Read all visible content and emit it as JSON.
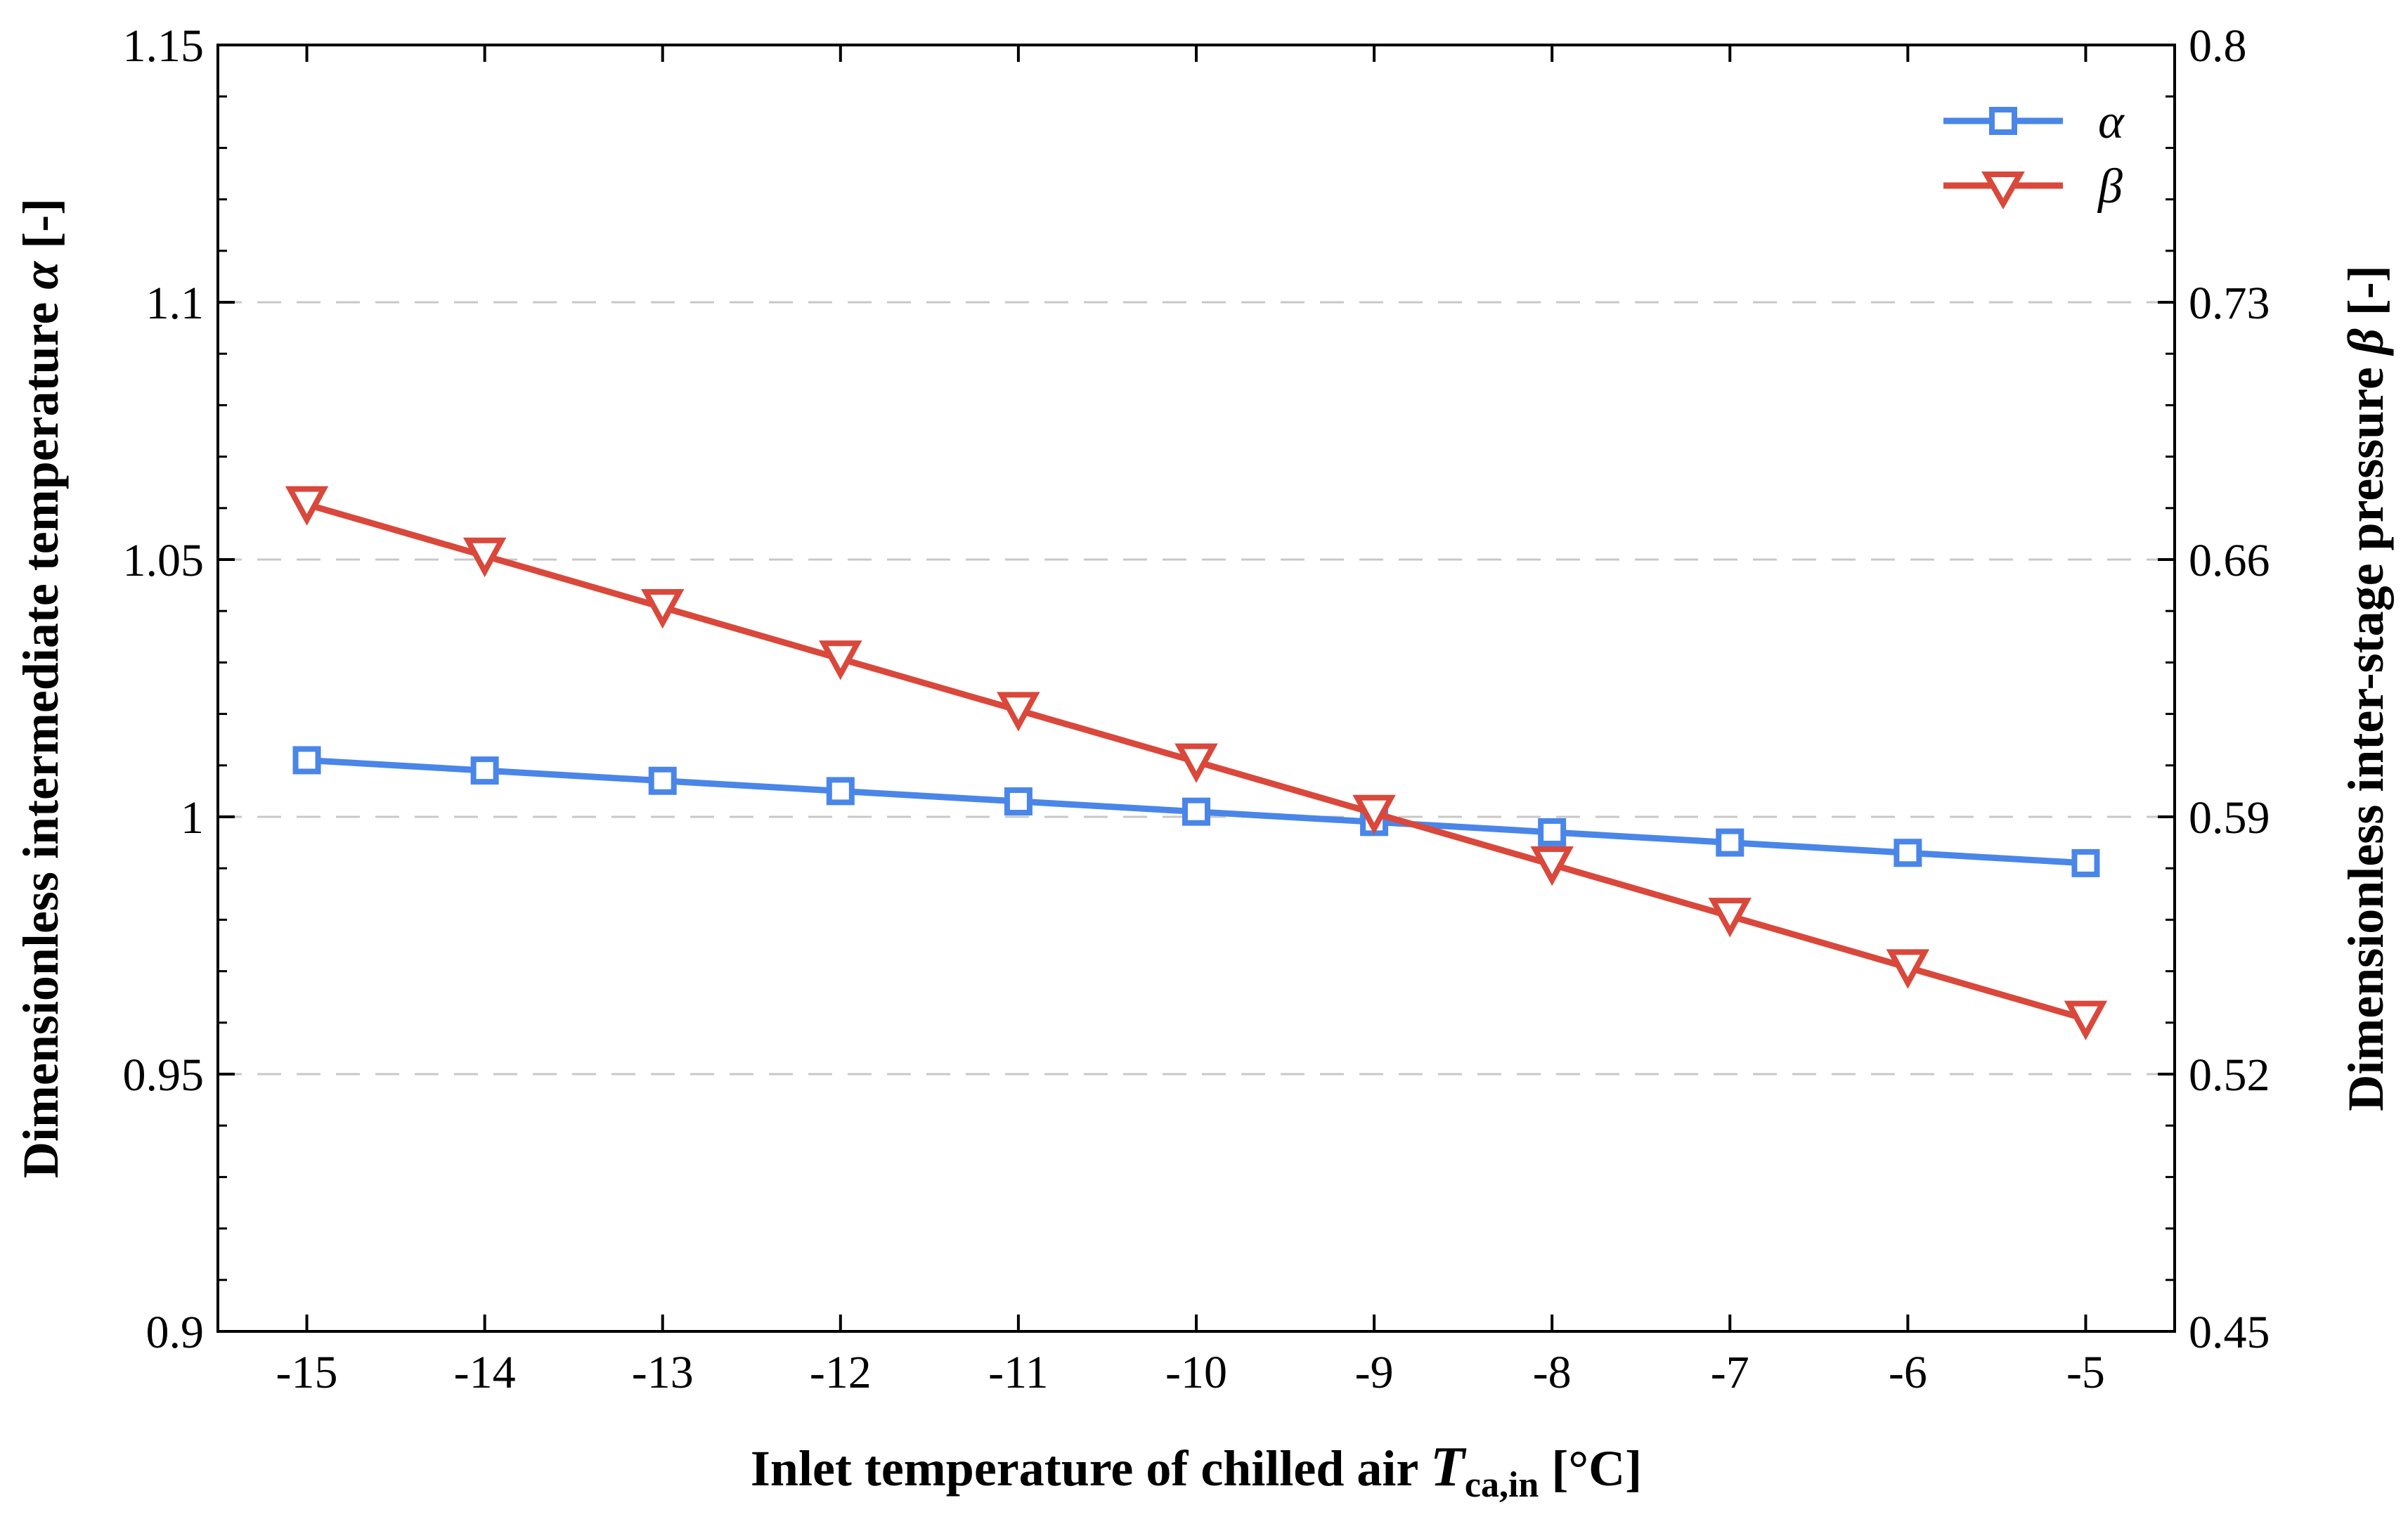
{
  "chart_data": {
    "type": "line",
    "x": [
      -15,
      -14,
      -13,
      -12,
      -11,
      -10,
      -9,
      -8,
      -7,
      -6,
      -5
    ],
    "xlim": [
      -15.5,
      -4.5
    ],
    "x_ticks": [
      "-15",
      "-14",
      "-13",
      "-12",
      "-11",
      "-10",
      "-9",
      "-8",
      "-7",
      "-6",
      "-5"
    ],
    "xlabel": {
      "main": "Inlet temperature of chilled air ",
      "symbol": "T",
      "subscript": "ca,in",
      "unit": " [°C]"
    },
    "left_axis": {
      "label_main": "Dimensionless intermediate temperature ",
      "label_symbol": "α",
      "label_unit": " [-]",
      "ylim": [
        0.9,
        1.15
      ],
      "ticks": [
        0.9,
        0.95,
        1.0,
        1.05,
        1.1,
        1.15
      ],
      "tick_labels": [
        "0.9",
        "0.95",
        "1",
        "1.05",
        "1.1",
        "1.15"
      ]
    },
    "right_axis": {
      "label_main": "Dimensionless inter-stage pressure ",
      "label_symbol": "β",
      "label_unit": " [-]",
      "ylim": [
        0.45,
        0.8
      ],
      "ticks": [
        0.45,
        0.52,
        0.59,
        0.66,
        0.73,
        0.8
      ],
      "tick_labels": [
        "0.45",
        "0.52",
        "0.59",
        "0.66",
        "0.73",
        "0.8"
      ]
    },
    "grid": "horizontal dashed at major ticks",
    "legend_position": "top-right",
    "series": [
      {
        "name": "α",
        "axis": "left",
        "color": "#4a86e8",
        "marker": "square",
        "values": [
          1.011,
          1.009,
          1.007,
          1.005,
          1.003,
          1.001,
          0.999,
          0.997,
          0.995,
          0.993,
          0.991
        ]
      },
      {
        "name": "β",
        "axis": "right",
        "color": "#d9483b",
        "marker": "triangle-down",
        "values": [
          0.675,
          0.661,
          0.647,
          0.633,
          0.619,
          0.605,
          0.591,
          0.577,
          0.563,
          0.549,
          0.535
        ]
      }
    ]
  }
}
